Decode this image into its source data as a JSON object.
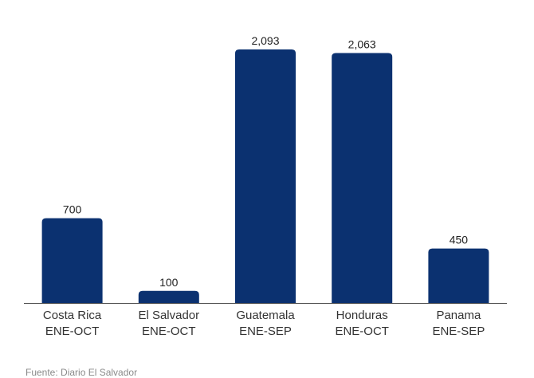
{
  "colors": {
    "bar": "#0b3170",
    "axis": "#555555"
  },
  "source": "Fuente: Diario El Salvador",
  "chart_data": {
    "type": "bar",
    "categories": [
      {
        "country": "Costa Rica",
        "period": "ENE-OCT"
      },
      {
        "country": "El Salvador",
        "period": "ENE-OCT"
      },
      {
        "country": "Guatemala",
        "period": "ENE-SEP"
      },
      {
        "country": "Honduras",
        "period": "ENE-OCT"
      },
      {
        "country": "Panama",
        "period": "ENE-SEP"
      }
    ],
    "values": [
      700,
      100,
      2093,
      2063,
      450
    ],
    "value_labels": [
      "700",
      "100",
      "2,093",
      "2,063",
      "450"
    ],
    "ylim": [
      0,
      2093
    ],
    "grid": false,
    "legend": "none"
  }
}
